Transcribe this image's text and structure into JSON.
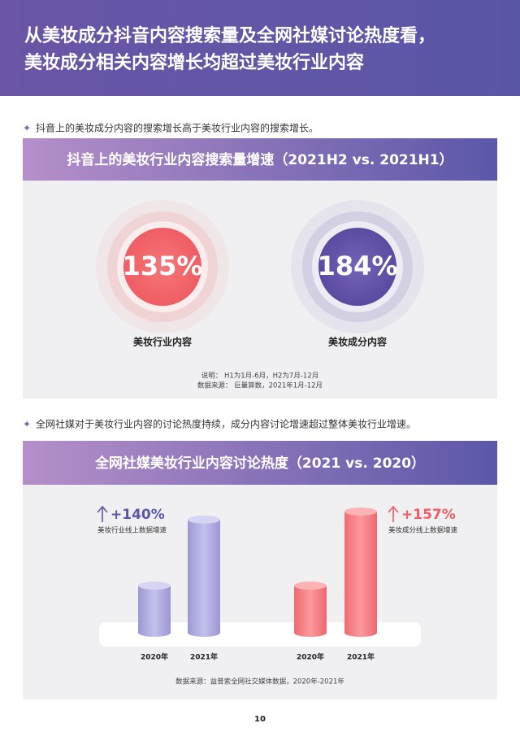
{
  "header": {
    "title_lines": [
      "从美妆成分抖音内容搜索量及全网社媒讨论热度看，",
      "美妆成分相关内容增长均超过美妆行业内容"
    ]
  },
  "section1": {
    "bullet": "抖音上的美妆成分内容的搜索增长高于美妆行业内容的搜索增长。",
    "card": {
      "title": "抖音上的美妆行业内容搜索量增速（2021H2 vs. 2021H1）",
      "items": [
        {
          "value_text": "135%",
          "label": "美妆行业内容"
        },
        {
          "value_text": "184%",
          "label": "美妆成分内容"
        }
      ],
      "notes": [
        "说明： H1为1月-6月，H2为7月-12月",
        "数据来源： 巨量算数，2021年1月-12月"
      ]
    }
  },
  "section2": {
    "bullet": "全网社媒对于美妆行业内容的讨论热度持续，成分内容讨论增速超过整体美妆行业增速。",
    "card": {
      "title": "全网社媒美妆行业内容讨论热度（2021 vs. 2020）",
      "groups": [
        {
          "growth": 140,
          "growth_label": "+140%",
          "caption": "美妆行业线上数据增速",
          "years": [
            "2020年",
            "2021年"
          ]
        },
        {
          "growth": 157,
          "growth_label": "+157%",
          "caption": "美妆成分线上数据增速",
          "years": [
            "2020年",
            "2021年"
          ]
        }
      ],
      "source": "数据来源：益普索全网社交媒体数据，2020年-2021年"
    }
  },
  "page_number": "10"
}
